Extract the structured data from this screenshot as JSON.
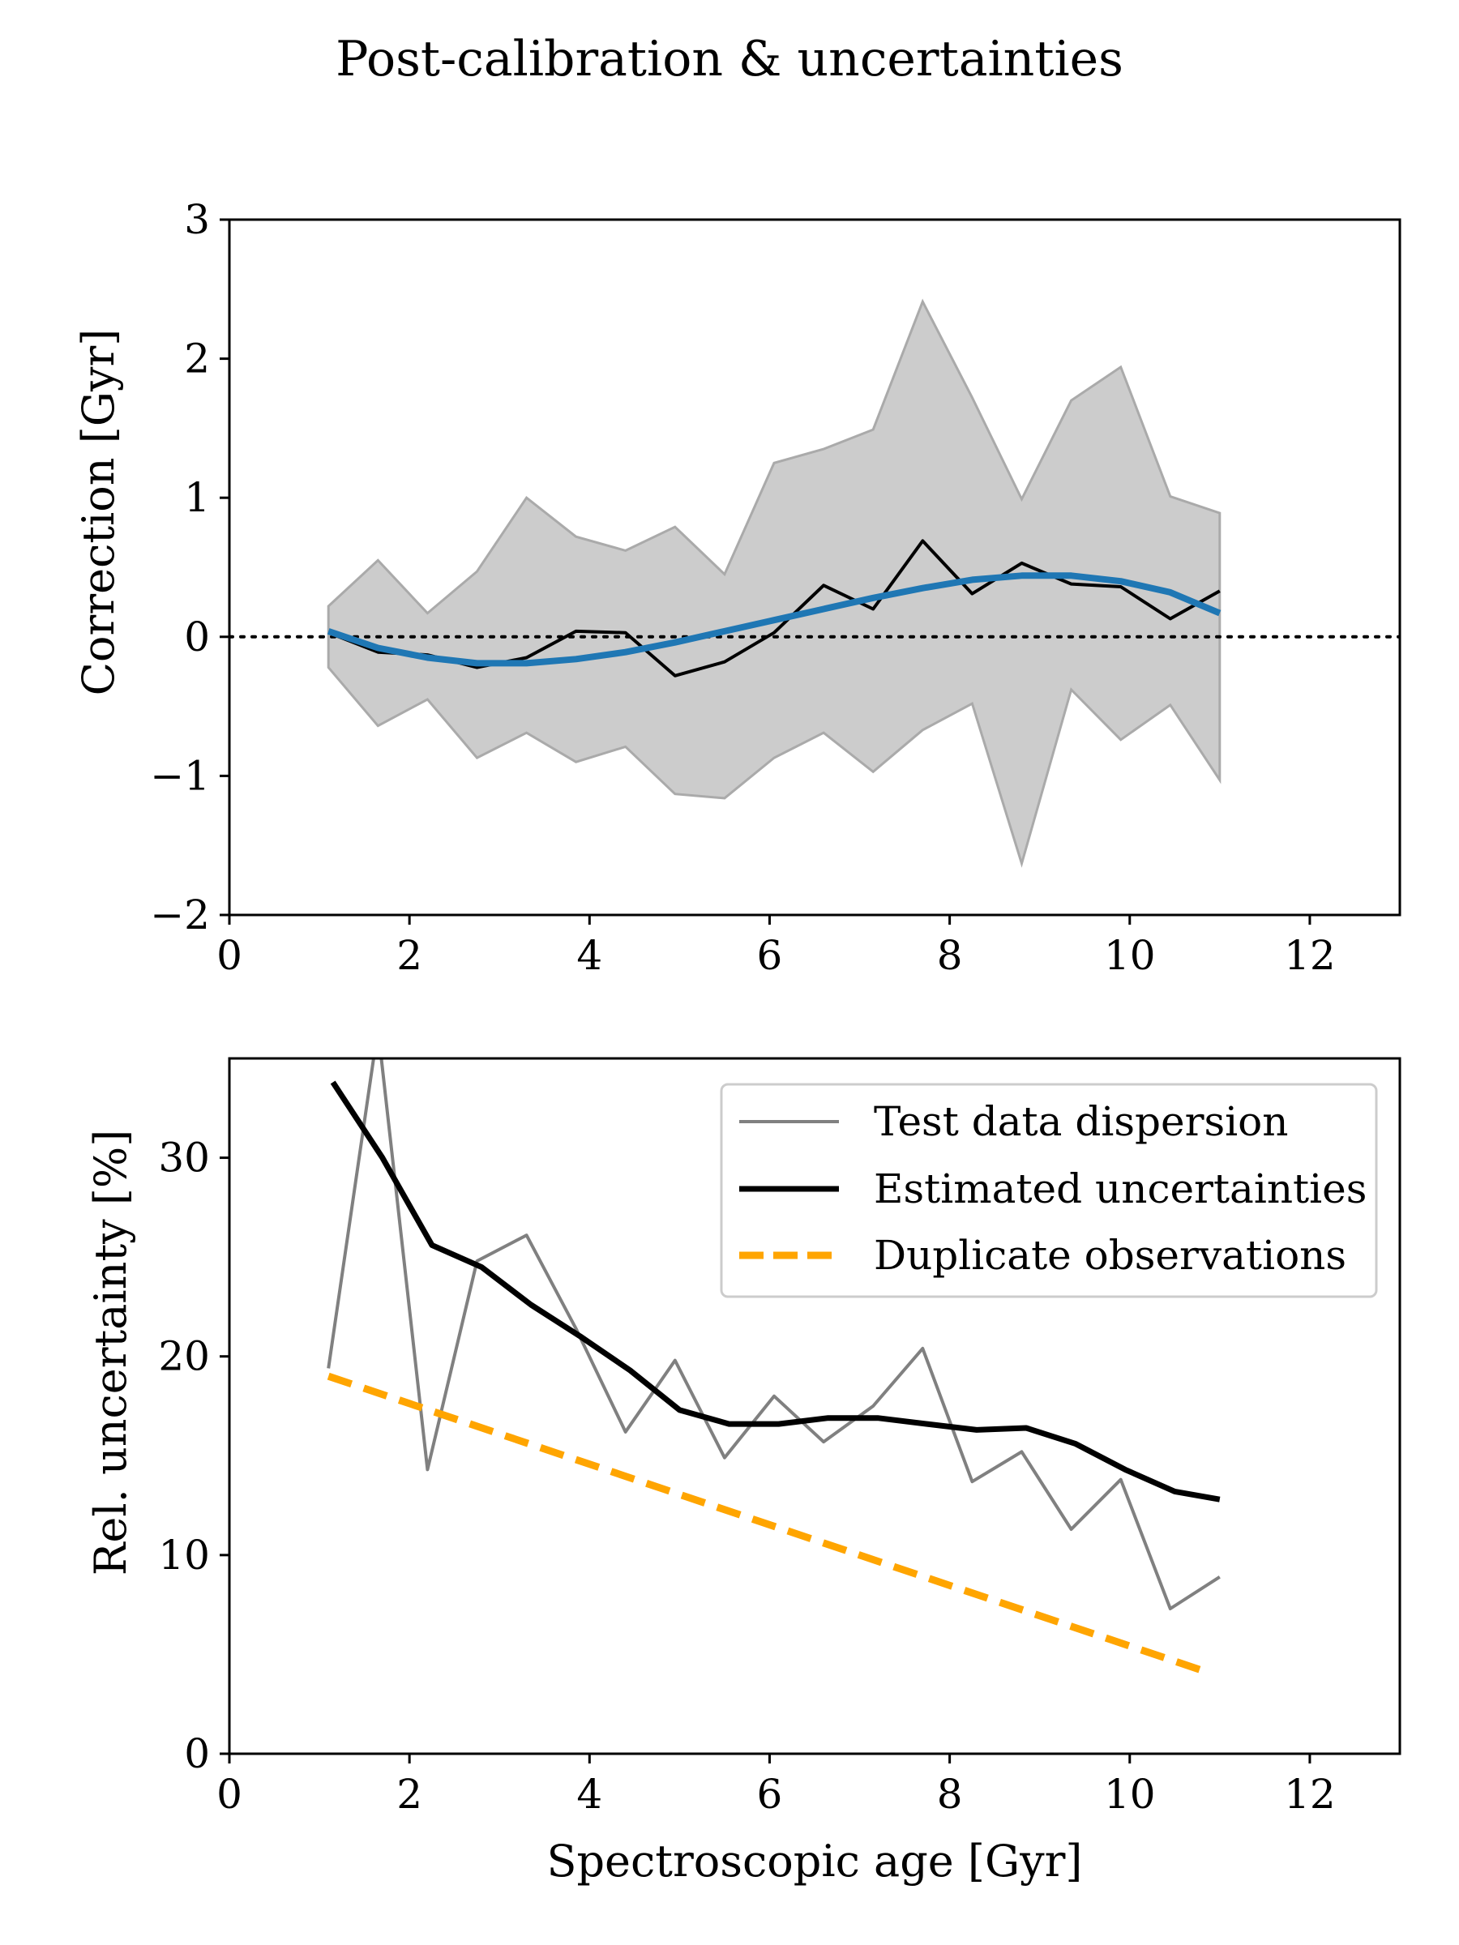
{
  "figure": {
    "title": "Post-calibration & uncertainties"
  },
  "chart_data": [
    {
      "type": "line",
      "xlabel": "",
      "ylabel": "Correction [Gyr]",
      "xlim": [
        0,
        13
      ],
      "ylim": [
        -2,
        3
      ],
      "xticks": [
        0,
        2,
        4,
        6,
        8,
        10,
        12
      ],
      "xtick_labels": [
        "0",
        "2",
        "4",
        "6",
        "8",
        "10",
        "12"
      ],
      "yticks": [
        -2,
        -1,
        0,
        1,
        2,
        3
      ],
      "ytick_labels": [
        "−2",
        "−1",
        "0",
        "1",
        "2",
        "3"
      ],
      "grid": false,
      "reference_line": {
        "y": 0,
        "style": "dotted",
        "color": "#000000"
      },
      "band": {
        "x": [
          1.1,
          1.65,
          2.2,
          2.75,
          3.3,
          3.85,
          4.4,
          4.95,
          5.5,
          6.05,
          6.6,
          7.15,
          7.7,
          8.25,
          8.8,
          9.35,
          9.9,
          10.45,
          11.0
        ],
        "upper": [
          0.22,
          0.55,
          0.17,
          0.47,
          1.0,
          0.72,
          0.62,
          0.79,
          0.45,
          1.25,
          1.35,
          1.49,
          2.41,
          1.72,
          0.99,
          1.7,
          1.94,
          1.01,
          0.89
        ],
        "lower": [
          -0.22,
          -0.64,
          -0.45,
          -0.87,
          -0.69,
          -0.9,
          -0.79,
          -1.13,
          -1.16,
          -0.87,
          -0.69,
          -0.97,
          -0.67,
          -0.48,
          -1.63,
          -0.38,
          -0.74,
          -0.49,
          -1.03
        ],
        "color": "#cccccc"
      },
      "series": [
        {
          "x": [
            1.1,
            1.65,
            2.2,
            2.75,
            3.3,
            3.85,
            4.4,
            4.95,
            5.5,
            6.05,
            6.6,
            7.15,
            7.7,
            8.25,
            8.8,
            9.35,
            9.9,
            10.45,
            11.0
          ],
          "values": [
            0.03,
            -0.11,
            -0.13,
            -0.22,
            -0.15,
            0.04,
            0.03,
            -0.28,
            -0.18,
            0.03,
            0.37,
            0.2,
            0.69,
            0.31,
            0.53,
            0.38,
            0.36,
            0.13,
            0.33
          ],
          "color": "#000000",
          "style": "solid"
        },
        {
          "x": [
            1.1,
            1.65,
            2.2,
            2.75,
            3.3,
            3.85,
            4.4,
            4.95,
            5.5,
            6.05,
            6.6,
            7.15,
            7.7,
            8.25,
            8.8,
            9.35,
            9.9,
            10.45,
            11.0
          ],
          "values": [
            0.04,
            -0.08,
            -0.15,
            -0.19,
            -0.19,
            -0.16,
            -0.11,
            -0.04,
            0.04,
            0.12,
            0.2,
            0.28,
            0.35,
            0.41,
            0.44,
            0.44,
            0.4,
            0.32,
            0.17
          ],
          "color": "#1f77b4",
          "style": "solid"
        }
      ]
    },
    {
      "type": "line",
      "xlabel": "Spectroscopic age [Gyr]",
      "ylabel": "Rel. uncertainty [%]",
      "xlim": [
        0,
        13
      ],
      "ylim": [
        0,
        35
      ],
      "xticks": [
        0,
        2,
        4,
        6,
        8,
        10,
        12
      ],
      "xtick_labels": [
        "0",
        "2",
        "4",
        "6",
        "8",
        "10",
        "12"
      ],
      "yticks": [
        0,
        10,
        20,
        30
      ],
      "ytick_labels": [
        "0",
        "10",
        "20",
        "30"
      ],
      "grid": false,
      "legend_position": "top-right",
      "series": [
        {
          "name": "Test data dispersion",
          "x": [
            1.1,
            1.65,
            2.2,
            2.75,
            3.3,
            3.85,
            4.4,
            4.95,
            5.5,
            6.05,
            6.6,
            7.15,
            7.7,
            8.25,
            8.8,
            9.35,
            9.9,
            10.45,
            11.0
          ],
          "values": [
            19.4,
            36.5,
            14.3,
            24.8,
            26.1,
            21.4,
            16.2,
            19.8,
            14.9,
            18.0,
            15.7,
            17.5,
            20.4,
            13.7,
            15.2,
            11.3,
            13.8,
            7.3,
            8.9
          ],
          "color": "#808080",
          "style": "solid"
        },
        {
          "name": "Estimated uncertainties",
          "x": [
            1.15,
            1.7,
            2.25,
            2.8,
            3.35,
            3.9,
            4.45,
            5.0,
            5.55,
            6.1,
            6.65,
            7.2,
            7.75,
            8.3,
            8.85,
            9.4,
            9.95,
            10.5,
            11.0
          ],
          "values": [
            33.8,
            30.0,
            25.6,
            24.5,
            22.6,
            21.0,
            19.3,
            17.3,
            16.6,
            16.6,
            16.9,
            16.9,
            16.6,
            16.3,
            16.4,
            15.6,
            14.3,
            13.2,
            12.8
          ],
          "color": "#000000",
          "style": "solid"
        },
        {
          "name": "Duplicate observations",
          "x": [
            1.1,
            10.8
          ],
          "values": [
            19.0,
            4.2
          ],
          "color": "#ffa500",
          "style": "dashed"
        }
      ]
    }
  ]
}
